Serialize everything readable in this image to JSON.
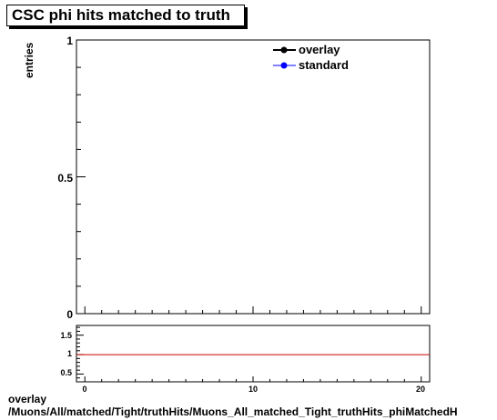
{
  "chart_data": [
    {
      "type": "line",
      "title": "CSC phi hits matched to truth",
      "ylabel": "entries",
      "xlabel": "",
      "xlim": [
        -0.5,
        20.5
      ],
      "ylim": [
        0,
        1
      ],
      "y_ticks": [
        "0",
        "0.5",
        "1"
      ],
      "legend": {
        "placement": "top-right",
        "entries": [
          "overlay",
          "standard"
        ]
      },
      "series": [
        {
          "name": "overlay",
          "color": "#000000",
          "x": [],
          "y": []
        },
        {
          "name": "standard",
          "color": "#0000ff",
          "x": [],
          "y": []
        }
      ]
    },
    {
      "type": "line",
      "title": "",
      "xlabel": "",
      "ylabel": "",
      "xlim": [
        -0.5,
        20.5
      ],
      "ylim": [
        0.3,
        1.75
      ],
      "x_ticks": [
        "0",
        "10",
        "20"
      ],
      "y_ticks": [
        "0.5",
        "1",
        "1.5"
      ],
      "reference_line": {
        "y": 1,
        "color": "#cc0000"
      }
    }
  ],
  "footer": {
    "line1": "overlay",
    "line2": "/Muons/All/matched/Tight/truthHits/Muons_All_matched_Tight_truthHits_phiMatchedH"
  }
}
